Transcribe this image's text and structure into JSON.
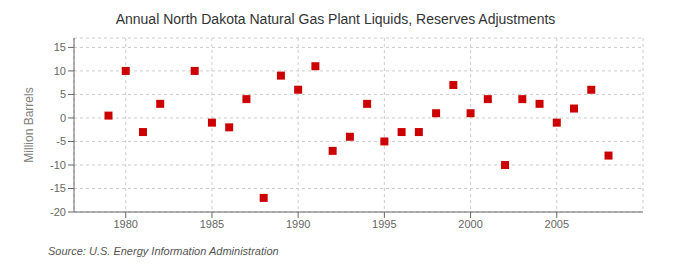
{
  "chart_data": {
    "type": "scatter",
    "title": "Annual North Dakota Natural Gas Plant Liquids, Reserves Adjustments",
    "ylabel": "Million Barrels",
    "source": "Source: U.S. Energy Information Administration",
    "x": [
      1979,
      1980,
      1981,
      1982,
      1984,
      1985,
      1986,
      1987,
      1988,
      1989,
      1990,
      1991,
      1992,
      1993,
      1994,
      1995,
      1996,
      1997,
      1998,
      1999,
      2000,
      2001,
      2002,
      2003,
      2004,
      2005,
      2006,
      2007,
      2008
    ],
    "values": [
      0.5,
      10.0,
      -3.0,
      3.0,
      10.0,
      -1.0,
      -2.0,
      4.0,
      -17.0,
      9.0,
      6.0,
      11.0,
      -7.0,
      -4.0,
      3.0,
      -5.0,
      -3.0,
      -3.0,
      1.0,
      7.0,
      1.0,
      4.0,
      -10.0,
      4.0,
      3.0,
      -1.0,
      2.0,
      6.0,
      -8.0
    ],
    "xlim": [
      1977,
      2010
    ],
    "ylim": [
      -20,
      17
    ],
    "xticks": [
      1980,
      1985,
      1990,
      1995,
      2000,
      2005
    ],
    "yticks": [
      -20,
      -15,
      -10,
      -5,
      0,
      5,
      10,
      15
    ],
    "color": "#cc0000",
    "marker": "square",
    "grid": true
  }
}
